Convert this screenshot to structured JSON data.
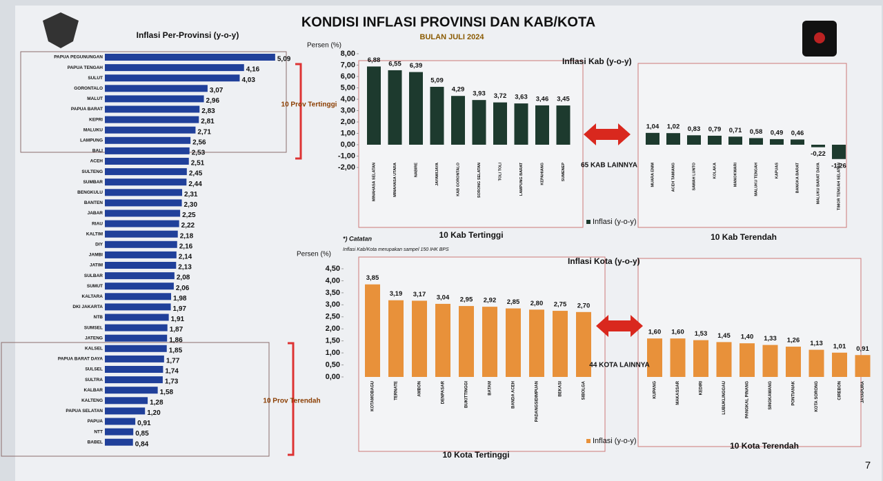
{
  "slide": {
    "title": "KONDISI INFLASI PROVINSI DAN KAB/KOTA",
    "subtitle": "BULAN JULI 2024",
    "note_heading": "*) Catatan",
    "note": "Inflasi Kab/Kota merupakan sampel 150 IHK BPS",
    "page_number": "7"
  },
  "chart_data": [
    {
      "type": "bar",
      "orientation": "horizontal",
      "title": "Inflasi Per-Provinsi (y-o-y)",
      "color": "#20409a",
      "categories": [
        "PAPUA PEGUNUNGAN",
        "PAPUA TENGAH",
        "SULUT",
        "GORONTALO",
        "MALUT",
        "PAPUA BARAT",
        "KEPRI",
        "MALUKU",
        "LAMPUNG",
        "BALI",
        "ACEH",
        "SULTENG",
        "SUMBAR",
        "BENGKULU",
        "BANTEN",
        "JABAR",
        "RIAU",
        "KALTIM",
        "DIY",
        "JAMBI",
        "JATIM",
        "SULBAR",
        "SUMUT",
        "KALTARA",
        "DKI JAKARTA",
        "NTB",
        "SUMSEL",
        "JATENG",
        "KALSEL",
        "PAPUA BARAT DAYA",
        "SULSEL",
        "SULTRA",
        "KALBAR",
        "KALTENG",
        "PAPUA SELATAN",
        "PAPUA",
        "NTT",
        "BABEL"
      ],
      "values": [
        5.09,
        4.16,
        4.03,
        3.07,
        2.96,
        2.83,
        2.81,
        2.71,
        2.56,
        2.53,
        2.51,
        2.45,
        2.44,
        2.31,
        2.3,
        2.25,
        2.22,
        2.18,
        2.16,
        2.14,
        2.13,
        2.08,
        2.06,
        1.98,
        1.97,
        1.91,
        1.87,
        1.86,
        1.85,
        1.77,
        1.74,
        1.73,
        1.58,
        1.28,
        1.2,
        0.91,
        0.85,
        0.84
      ],
      "value_labels": [
        "5,09",
        "4,16",
        "4,03",
        "3,07",
        "2,96",
        "2,83",
        "2,81",
        "2,71",
        "2,56",
        "2,53",
        "2,51",
        "2,45",
        "2,44",
        "2,31",
        "2,30",
        "2,25",
        "2,22",
        "2,18",
        "2,16",
        "2,14",
        "2,13",
        "2,08",
        "2,06",
        "1,98",
        "1,97",
        "1,91",
        "1,87",
        "1,86",
        "1,85",
        "1,77",
        "1,74",
        "1,73",
        "1,58",
        "1,28",
        "1,20",
        "0,91",
        "0,85",
        "0,84"
      ],
      "annotations": [
        "10 Prov Tertinggi",
        "10 Prov Terendah"
      ]
    },
    {
      "type": "bar",
      "title": "Inflasi Kab (y-o-y)",
      "y_label": "Persen (%)",
      "categories": [
        "MINAHASA SELATAN",
        "MINAHASA UTARA",
        "NABIRE",
        "JAYAWIJAYA",
        "KAB GORONTALO",
        "SORONG SELATAN",
        "TOLI TOLI",
        "LAMPUNG BARAT",
        "KEPAHIANG",
        "SUMENEP",
        "MUARA ENIM",
        "ACEH TAMIANG",
        "SAWAH LUNTO",
        "KOLAKA",
        "MANOKWARI",
        "MALUKU TENGAH",
        "KAPUAS",
        "BANGKA BARAT",
        "MALUKU BARAT DAYA",
        "TIMOR TENGAH SELATAN"
      ],
      "series": [
        {
          "name": "Inflasi (y-o-y)",
          "color": "#1d3a2e",
          "values": [
            6.88,
            6.55,
            6.39,
            5.09,
            4.29,
            3.93,
            3.72,
            3.63,
            3.46,
            3.45,
            1.04,
            1.02,
            0.83,
            0.79,
            0.71,
            0.58,
            0.49,
            0.46,
            -0.22,
            -1.26
          ],
          "value_labels": [
            "6,88",
            "6,55",
            "6,39",
            "5,09",
            "4,29",
            "3,93",
            "3,72",
            "3,63",
            "3,46",
            "3,45",
            "1,04",
            "1,02",
            "0,83",
            "0,79",
            "0,71",
            "0,58",
            "0,49",
            "0,46",
            "-0,22",
            "-1,26"
          ]
        }
      ],
      "ylim": [
        -2,
        8
      ],
      "yticks": [
        {
          "value": -2,
          "label": "-2,00"
        },
        {
          "value": -1,
          "label": "-1,00"
        },
        {
          "value": 0,
          "label": "0,00"
        },
        {
          "value": 1,
          "label": "1,00"
        },
        {
          "value": 2,
          "label": "2,00"
        },
        {
          "value": 3,
          "label": "3,00"
        },
        {
          "value": 4,
          "label": "4,00"
        },
        {
          "value": 5,
          "label": "5,00"
        },
        {
          "value": 6,
          "label": "6,00"
        },
        {
          "value": 7,
          "label": "7,00"
        },
        {
          "value": 8,
          "label": "8,00"
        }
      ],
      "group_labels": [
        "10 Kab Tertinggi",
        "10 Kab Terendah"
      ],
      "annotations": [
        "65 KAB LAINNYA"
      ]
    },
    {
      "type": "bar",
      "title": "Inflasi Kota (y-o-y)",
      "y_label": "Persen (%)",
      "categories": [
        "KOTAMOBAGU",
        "TERNATE",
        "AMBON",
        "DENPASAR",
        "BUKITTINGGI",
        "BATAM",
        "BANDA ACEH",
        "PADANGSIDIMPUAN",
        "BEKASI",
        "SIBOLGA",
        "KUPANG",
        "MAKASSAR",
        "KEDIRI",
        "LUBUKLINGGAU",
        "PANGKAL PINANG",
        "SINGKAWANG",
        "PONTIANAK",
        "KOTA SORONG",
        "CIREBON",
        "JAYAPURA"
      ],
      "series": [
        {
          "name": "Inflasi (y-o-y)",
          "color": "#e8913a",
          "values": [
            3.85,
            3.19,
            3.17,
            3.04,
            2.95,
            2.92,
            2.85,
            2.8,
            2.75,
            2.7,
            1.6,
            1.6,
            1.53,
            1.45,
            1.4,
            1.33,
            1.26,
            1.13,
            1.01,
            0.91
          ],
          "value_labels": [
            "3,85",
            "3,19",
            "3,17",
            "3,04",
            "2,95",
            "2,92",
            "2,85",
            "2,80",
            "2,75",
            "2,70",
            "1,60",
            "1,60",
            "1,53",
            "1,45",
            "1,40",
            "1,33",
            "1,26",
            "1,13",
            "1,01",
            "0,91"
          ]
        }
      ],
      "ylim": [
        0,
        4.5
      ],
      "yticks": [
        {
          "value": 0,
          "label": "0,00"
        },
        {
          "value": 0.5,
          "label": "0,50"
        },
        {
          "value": 1,
          "label": "1,00"
        },
        {
          "value": 1.5,
          "label": "1,50"
        },
        {
          "value": 2,
          "label": "2,00"
        },
        {
          "value": 2.5,
          "label": "2,50"
        },
        {
          "value": 3,
          "label": "3,00"
        },
        {
          "value": 3.5,
          "label": "3,50"
        },
        {
          "value": 4,
          "label": "4,00"
        },
        {
          "value": 4.5,
          "label": "4,50"
        }
      ],
      "group_labels": [
        "10 Kota Tertinggi",
        "10 Kota Terendah"
      ],
      "annotations": [
        "44 KOTA LAINNYA"
      ]
    }
  ]
}
